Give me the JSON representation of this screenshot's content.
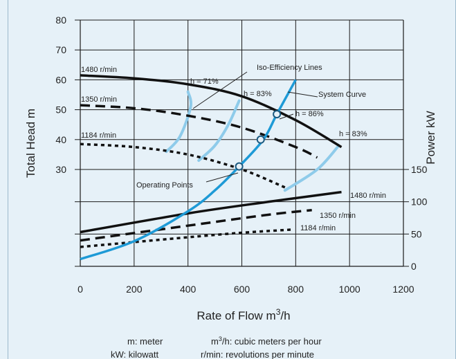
{
  "chart_data": {
    "type": "line",
    "xlabel": "Rate of Flow m",
    "xlabel_sup": "3",
    "xlabel_suffix": "/h",
    "ylabel_left": "Total Head m",
    "ylabel_right": "Power kW",
    "xlim": [
      0,
      1200
    ],
    "ylim_head": [
      0,
      80
    ],
    "x_ticks": [
      "0",
      "200",
      "400",
      "600",
      "800",
      "1000",
      "1200"
    ],
    "head_ticks": [
      "30",
      "40",
      "50",
      "60",
      "70",
      "80"
    ],
    "power_ticks": [
      "0",
      "50",
      "100",
      "150"
    ],
    "grid": true,
    "head_curves": [
      {
        "name": "1480 r/min",
        "style": "solid",
        "points": [
          [
            0,
            61.5
          ],
          [
            200,
            60.5
          ],
          [
            400,
            58.5
          ],
          [
            600,
            54.5
          ],
          [
            800,
            46.5
          ],
          [
            970,
            37.5
          ]
        ]
      },
      {
        "name": "1350 r/min",
        "style": "dashed",
        "points": [
          [
            0,
            51.5
          ],
          [
            200,
            50.5
          ],
          [
            400,
            48
          ],
          [
            600,
            44
          ],
          [
            800,
            37.5
          ],
          [
            880,
            34
          ]
        ]
      },
      {
        "name": "1184 r/min",
        "style": "dotted",
        "points": [
          [
            0,
            38.5
          ],
          [
            200,
            37.5
          ],
          [
            400,
            35
          ],
          [
            600,
            30
          ],
          [
            760,
            24
          ]
        ]
      }
    ],
    "power_curves": [
      {
        "name": "1480 r/min",
        "style": "solid",
        "points": [
          [
            0,
            53
          ],
          [
            400,
            82
          ],
          [
            700,
            100
          ],
          [
            970,
            115
          ]
        ]
      },
      {
        "name": "1350 r/min",
        "style": "dashed",
        "points": [
          [
            0,
            40
          ],
          [
            400,
            63
          ],
          [
            700,
            80
          ],
          [
            860,
            87
          ]
        ]
      },
      {
        "name": "1184 r/min",
        "style": "dotted",
        "points": [
          [
            0,
            30
          ],
          [
            400,
            45
          ],
          [
            600,
            52
          ],
          [
            790,
            57
          ]
        ]
      }
    ],
    "system_curve": {
      "name": "System Curve",
      "points": [
        [
          0,
          0
        ],
        [
          200,
          6
        ],
        [
          400,
          16
        ],
        [
          500,
          23
        ],
        [
          590,
          31
        ],
        [
          680,
          40
        ],
        [
          730,
          48.5
        ],
        [
          800,
          60
        ]
      ]
    },
    "iso_efficiency": [
      {
        "label": "h = 71%",
        "points": [
          [
            320,
            36
          ],
          [
            370,
            41
          ],
          [
            410,
            51
          ],
          [
            400,
            56
          ]
        ]
      },
      {
        "label": "h = 83%",
        "points": [
          [
            440,
            33
          ],
          [
            500,
            38
          ],
          [
            550,
            45
          ],
          [
            590,
            53
          ]
        ]
      },
      {
        "label": "h = 83%",
        "points": [
          [
            760,
            23
          ],
          [
            880,
            30
          ],
          [
            960,
            38
          ]
        ]
      }
    ],
    "operating_points": [
      [
        590,
        31
      ],
      [
        670,
        40
      ],
      [
        730,
        48.5
      ]
    ],
    "annotations": {
      "iso_lines": "Iso-Efficiency Lines",
      "system_curve": "System Curve",
      "operating_points": "Operating Points",
      "eff_71": "h = 71%",
      "eff_83_a": "h = 83%",
      "eff_86": "h = 86%",
      "eff_83_b": "h = 83%",
      "head_1480": "1480 r/min",
      "head_1350": "1350 r/min",
      "head_1184": "1184 r/min",
      "power_1480": "1480 r/min",
      "power_1350": "1350 r/min",
      "power_1184": "1184 r/min"
    },
    "colors": {
      "head": "#111111",
      "system": "#1e9ad6",
      "iso": "#8ecbea",
      "grid": "#1a1a1a"
    }
  },
  "legend": {
    "m": "m: meter",
    "m3_prefix": "m",
    "m3_sup": "3",
    "m3_suffix": "/h: cubic meters per hour",
    "kw": "kW: kilowatt",
    "rmin": "r/min: revolutions per minute"
  }
}
